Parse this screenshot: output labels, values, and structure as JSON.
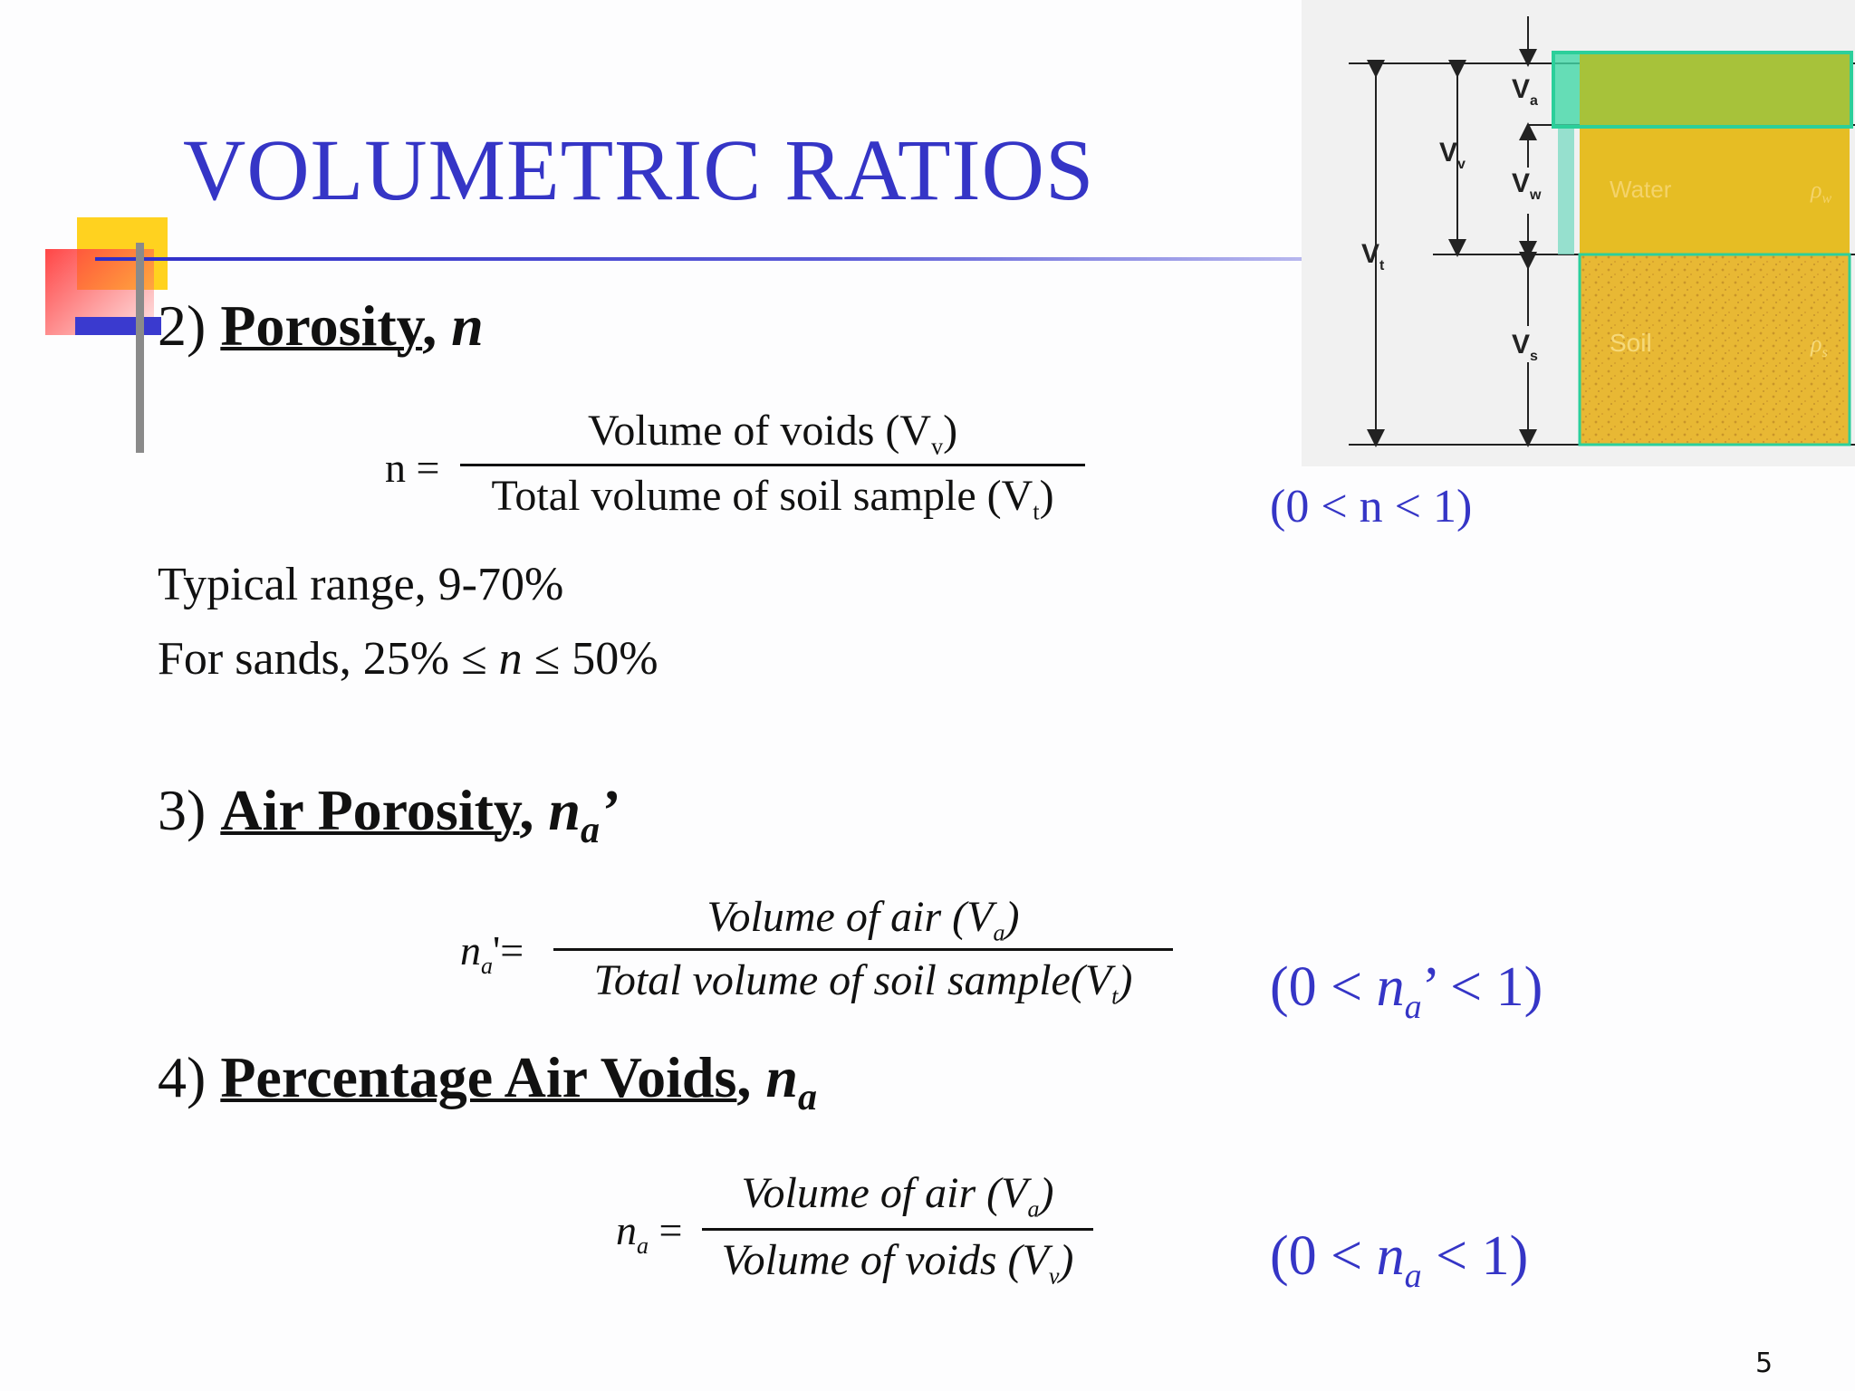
{
  "title": "VOLUMETRIC RATIOS",
  "sections": {
    "porosity": {
      "number": "2)",
      "name": "Porosity",
      "symbol": "n",
      "lhs": "n =",
      "numerator_text": "Volume  of  voids (V",
      "numerator_sub": "v",
      "denominator_text": "Total  volume  of  soil  sample (V",
      "denominator_sub": "t",
      "range_text": "(0 < n < 1)",
      "typical_range": "Typical range, 9-70%",
      "sands_prefix": "For sands, 25% ≤ ",
      "sands_symbol": "n",
      "sands_suffix": " ≤ 50%"
    },
    "air_porosity": {
      "number": "3)",
      "name": "Air Porosity",
      "symbol": "n",
      "symbol_sub": "a",
      "symbol_suffix": "’",
      "lhs": "n",
      "lhs_sub": "a",
      "lhs_suffix": "'=",
      "numerator_text": "Volume  of  air (V",
      "numerator_sub": "a",
      "denominator_text": "Total  volume  of  soil  sample(V",
      "denominator_sub": "t",
      "range_prefix": "(0 < ",
      "range_symbol": "n",
      "range_sub": "a",
      "range_suffix": "’ < 1)"
    },
    "percentage_air_voids": {
      "number": "4)",
      "name": "Percentage Air Voids",
      "symbol": "n",
      "symbol_sub": "a",
      "lhs": "n",
      "lhs_sub": "a",
      "lhs_suffix": " =",
      "numerator_text": "Volume  of  air (V",
      "numerator_sub": "a",
      "denominator_text": "Volume  of  voids (V",
      "denominator_sub": "v",
      "range_prefix": "(0 < ",
      "range_symbol": "n",
      "range_sub": "a",
      "range_suffix": " < 1)"
    }
  },
  "diagram": {
    "labels": {
      "va": "V",
      "va_sub": "a",
      "vv": "V",
      "vv_sub": "v",
      "vw": "V",
      "vw_sub": "w",
      "vt": "V",
      "vt_sub": "t",
      "vs": "V",
      "vs_sub": "s",
      "water": "Water",
      "soil": "Soil",
      "rho_w": "ρ",
      "rho_w_sub": "w",
      "rho_s": "ρ",
      "rho_s_sub": "s"
    },
    "colors": {
      "air": "#a7c23a",
      "water": "#e6bd24",
      "soil": "#e8b834",
      "outline": "#2ccf9a"
    }
  },
  "page_number": "5"
}
